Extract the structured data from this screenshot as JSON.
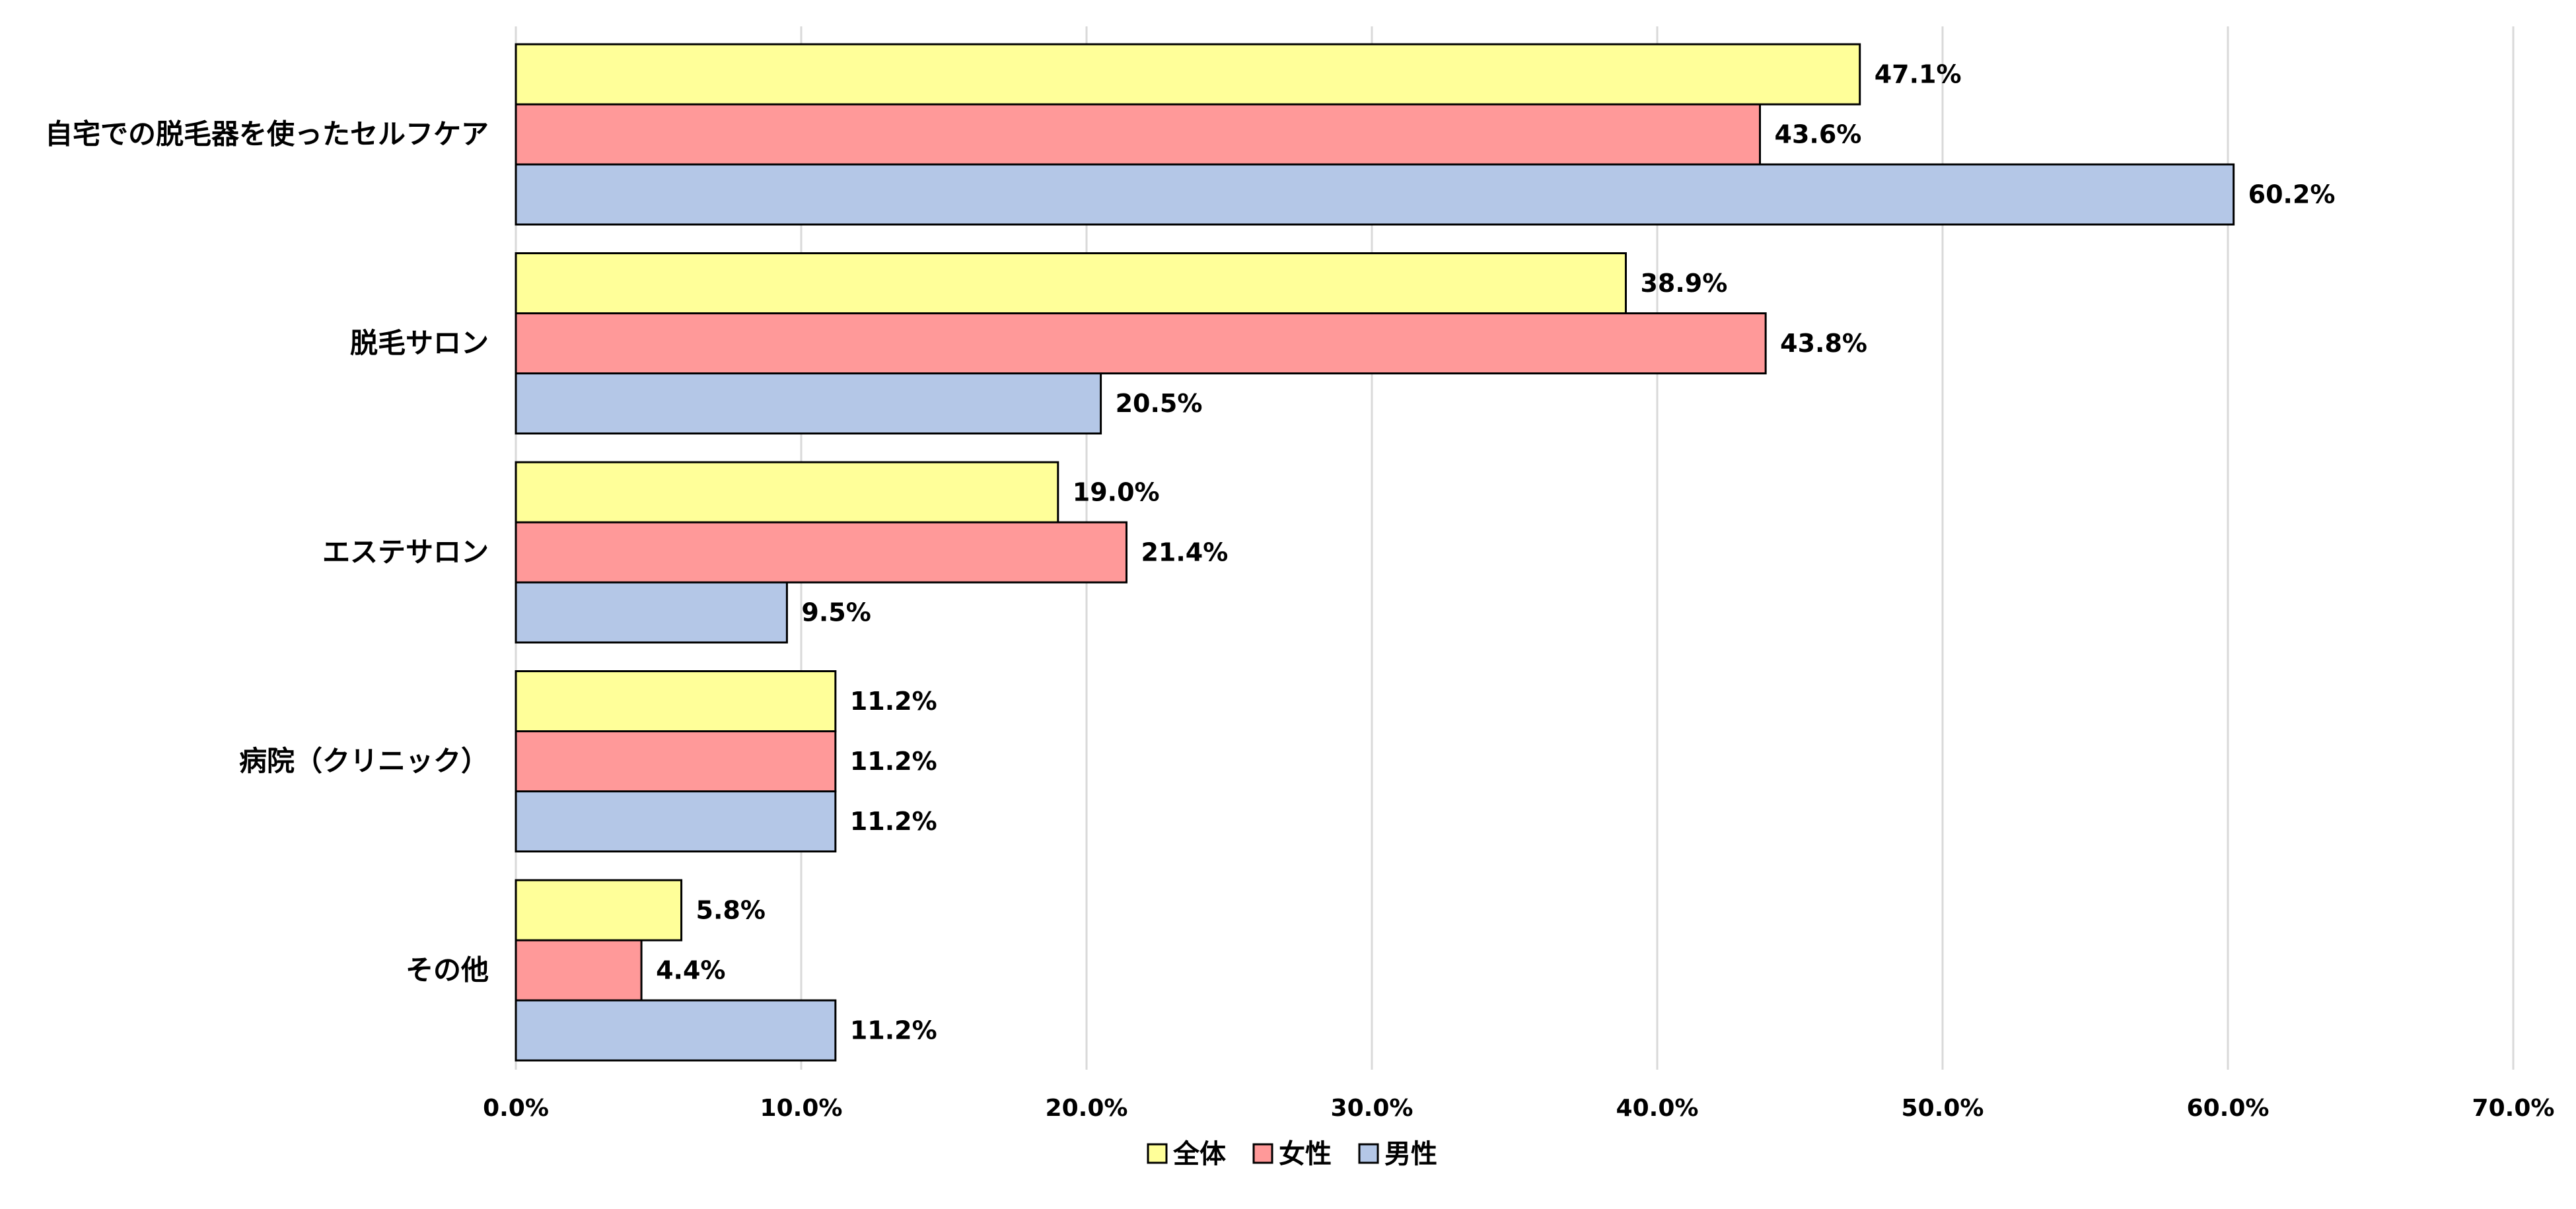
{
  "chart_data": {
    "type": "bar",
    "orientation": "horizontal",
    "categories": [
      "自宅での脱毛器を使ったセルフケア",
      "脱毛サロン",
      "エステサロン",
      "病院（クリニック）",
      "その他"
    ],
    "series": [
      {
        "name": "全体",
        "color": "#FFFF99",
        "values": [
          47.1,
          38.9,
          19.0,
          11.2,
          5.8
        ],
        "labels": [
          "47.1%",
          "38.9%",
          "19.0%",
          "11.2%",
          "5.8%"
        ]
      },
      {
        "name": "女性",
        "color": "#FF9999",
        "values": [
          43.6,
          43.8,
          21.4,
          11.2,
          4.4
        ],
        "labels": [
          "43.6%",
          "43.8%",
          "21.4%",
          "11.2%",
          "4.4%"
        ]
      },
      {
        "name": "男性",
        "color": "#B4C7E7",
        "values": [
          60.2,
          20.5,
          9.5,
          11.2,
          11.2
        ],
        "labels": [
          "60.2%",
          "20.5%",
          "9.5%",
          "11.2%",
          "11.2%"
        ]
      }
    ],
    "xlim": [
      0,
      70
    ],
    "xticks": [
      0,
      10,
      20,
      30,
      40,
      50,
      60,
      70
    ],
    "xtick_labels": [
      "0.0%",
      "10.0%",
      "20.0%",
      "30.0%",
      "40.0%",
      "50.0%",
      "60.0%",
      "70.0%"
    ],
    "grid": "vertical",
    "legend_position": "bottom-center"
  }
}
